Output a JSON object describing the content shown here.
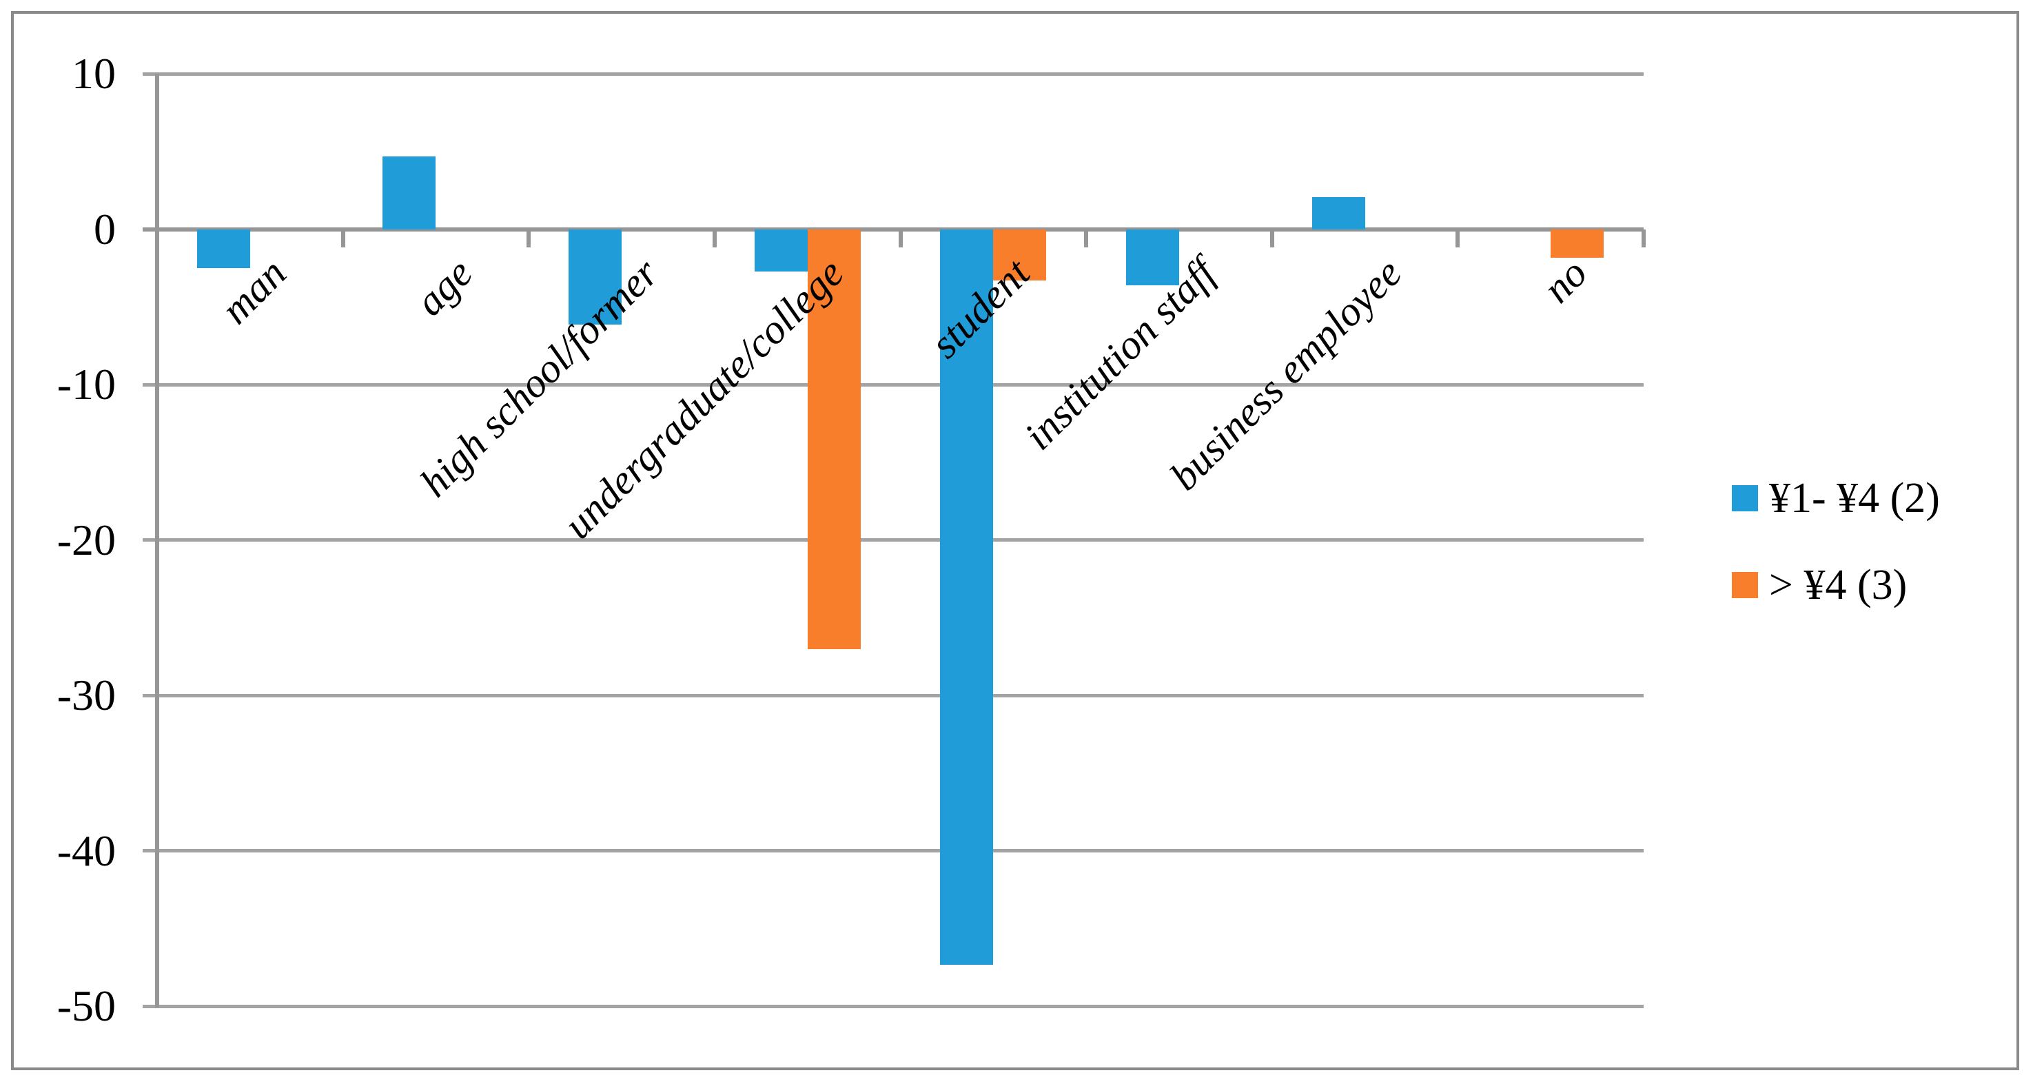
{
  "chart_data": {
    "type": "bar",
    "title": "",
    "categories": [
      "man",
      "age",
      "high school/former",
      "undergraduate/college",
      "student",
      "institution staff",
      "business employee",
      "no"
    ],
    "series": [
      {
        "name": "¥1- ¥4 (2)",
        "color": "#209cd8",
        "values": [
          -2.5,
          4.7,
          -6.1,
          -2.7,
          -47.3,
          -3.6,
          2.1,
          0
        ]
      },
      {
        "name": "> ¥4 (3)",
        "color": "#f87e2b",
        "values": [
          0,
          0,
          0,
          -27.0,
          -3.3,
          0,
          0,
          -1.8
        ]
      }
    ],
    "xlabel": "",
    "ylabel": "",
    "ylim": [
      -50,
      10
    ],
    "ytick_step": 10,
    "ytick_labels": [
      "10",
      "0",
      "-10",
      "-20",
      "-30",
      "-40",
      "-50"
    ],
    "grid": true,
    "gridline_color": "#a3a3a3",
    "axis_color": "#969696",
    "border_color": "#8a8a8a",
    "background_color": "#ffffff",
    "legend_position": "right",
    "category_label_rotation_deg": -45
  }
}
